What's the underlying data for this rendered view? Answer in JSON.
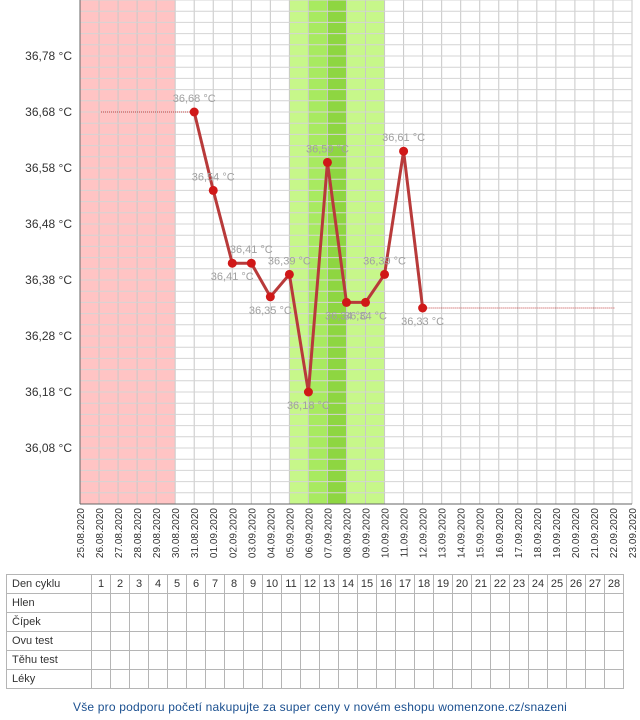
{
  "chart_data": {
    "type": "line",
    "y_ticks": [
      "36,78 °C",
      "36,68 °C",
      "36,58 °C",
      "36,48 °C",
      "36,38 °C",
      "36,28 °C",
      "36,18 °C",
      "36,08 °C"
    ],
    "y_tick_values": [
      36.78,
      36.68,
      36.58,
      36.48,
      36.38,
      36.28,
      36.18,
      36.08
    ],
    "ylim": [
      35.98,
      36.88
    ],
    "dates": [
      "25.08.2020",
      "26.08.2020",
      "27.08.2020",
      "28.08.2020",
      "29.08.2020",
      "30.08.2020",
      "31.08.2020",
      "01.09.2020",
      "02.09.2020",
      "03.09.2020",
      "04.09.2020",
      "05.09.2020",
      "06.09.2020",
      "07.09.2020",
      "08.09.2020",
      "09.09.2020",
      "10.09.2020",
      "11.09.2020",
      "12.09.2020",
      "13.09.2020",
      "14.09.2020",
      "15.09.2020",
      "16.09.2020",
      "17.09.2020",
      "18.09.2020",
      "19.09.2020",
      "20.09.2020",
      "21.09.2020",
      "22.09.2020",
      "23.09.2020"
    ],
    "series": [
      {
        "color": "#b83a3a",
        "points": [
          {
            "date": "31.08.2020",
            "value": 36.68,
            "label": "36,68 °C"
          },
          {
            "date": "01.09.2020",
            "value": 36.54,
            "label": "36,54 °C"
          },
          {
            "date": "02.09.2020",
            "value": 36.41,
            "label": "36,41 °C"
          },
          {
            "date": "03.09.2020",
            "value": 36.41,
            "label": "36,41 °C"
          },
          {
            "date": "04.09.2020",
            "value": 36.35,
            "label": "36,35 °C"
          },
          {
            "date": "05.09.2020",
            "value": 36.39,
            "label": "36,39 °C"
          },
          {
            "date": "06.09.2020",
            "value": 36.18,
            "label": "36,18 °C"
          },
          {
            "date": "07.09.2020",
            "value": 36.59,
            "label": "36,59 °C"
          },
          {
            "date": "08.09.2020",
            "value": 36.34,
            "label": "36,34 °C"
          },
          {
            "date": "09.09.2020",
            "value": 36.34,
            "label": "36,34 °C"
          },
          {
            "date": "10.09.2020",
            "value": 36.39,
            "label": "36,39 °C"
          },
          {
            "date": "11.09.2020",
            "value": 36.61,
            "label": "36,61 °C"
          },
          {
            "date": "12.09.2020",
            "value": 36.33,
            "label": "36,33 °C"
          }
        ]
      }
    ],
    "extensions": [
      {
        "from": "26.08.2020",
        "to": "31.08.2020",
        "value": 36.68
      },
      {
        "from": "12.09.2020",
        "to": "22.09.2020",
        "value": 36.33
      }
    ],
    "bands": [
      {
        "from": "25.08.2020",
        "to": "30.08.2020",
        "color": "#ffc4c4"
      },
      {
        "from": "05.09.2020",
        "to": "10.09.2020",
        "color": "#c7f78a"
      },
      {
        "from": "06.09.2020",
        "to": "08.09.2020",
        "color": "#a8ea60"
      },
      {
        "from": "07.09.2020",
        "to": "08.09.2020",
        "color": "#8ed641"
      }
    ],
    "grid": true
  },
  "table": {
    "row_labels": [
      "Den cyklu",
      "Hlen",
      "Čípek",
      "Ovu test",
      "Těhu test",
      "Léky"
    ],
    "cycle_days": [
      "1",
      "2",
      "3",
      "4",
      "5",
      "6",
      "7",
      "8",
      "9",
      "10",
      "11",
      "12",
      "13",
      "14",
      "15",
      "16",
      "17",
      "18",
      "19",
      "20",
      "21",
      "22",
      "23",
      "24",
      "25",
      "26",
      "27",
      "28"
    ]
  },
  "footer": {
    "text": "Vše pro podporu početí nakupujte za super ceny v novém eshopu womenzone.cz/snazeni"
  }
}
